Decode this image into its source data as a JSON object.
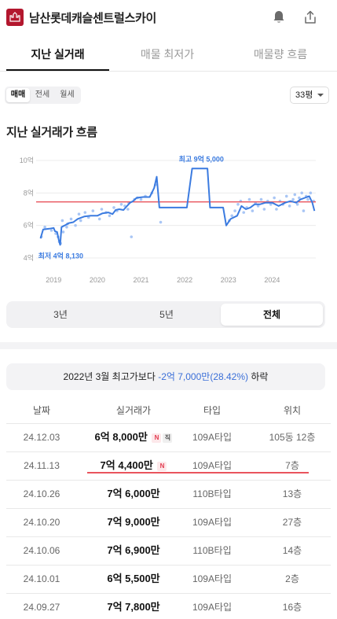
{
  "app": {
    "title": "남산롯데캐슬센트럴스카이"
  },
  "icons": {
    "logo": "castle-logo-icon",
    "bell": "bell-icon",
    "share": "share-icon"
  },
  "colors": {
    "brand": "#b3172e",
    "line": "#3b7be0",
    "scatter": "#a9c6f5",
    "average_line": "#e9545d",
    "accent": "#3b6fd8"
  },
  "tabs": [
    "지난 실거래",
    "매물 최저가",
    "매물량 흐름"
  ],
  "deal_types": [
    "매매",
    "전세",
    "월세"
  ],
  "size_select": "33평",
  "section_title": "지난 실거래가 흐름",
  "chart_data": {
    "type": "line",
    "y_tick_labels": [
      "10억",
      "8억",
      "6억",
      "4억"
    ],
    "y_ticks": [
      10,
      8,
      6,
      4
    ],
    "x_tick_labels": [
      "2019",
      "2020",
      "2021",
      "2022",
      "2023",
      "2024"
    ],
    "x_ticks": [
      2019,
      2020,
      2021,
      2022,
      2023,
      2024
    ],
    "x_range": [
      2018.6,
      2025.0
    ],
    "ylim": [
      4,
      10
    ],
    "grid": true,
    "annotations": {
      "max_label": "최고 9억 5,000",
      "min_label": "최저 4억 8,130"
    },
    "max_point": {
      "x": 2022.2,
      "y": 9.5
    },
    "min_point": {
      "x": 2019.15,
      "y": 4.81
    },
    "reference_line": 7.45,
    "series": [
      {
        "values": [
          [
            2018.7,
            5.2
          ],
          [
            2018.76,
            5.75
          ],
          [
            2018.9,
            5.8
          ],
          [
            2019.0,
            5.85
          ],
          [
            2019.03,
            5.65
          ],
          [
            2019.08,
            5.6
          ],
          [
            2019.12,
            5.1
          ],
          [
            2019.15,
            4.81
          ],
          [
            2019.18,
            5.9
          ],
          [
            2019.25,
            6.0
          ],
          [
            2019.35,
            6.15
          ],
          [
            2019.45,
            6.2
          ],
          [
            2019.55,
            6.4
          ],
          [
            2019.7,
            6.55
          ],
          [
            2019.85,
            6.6
          ],
          [
            2020.0,
            6.6
          ],
          [
            2020.12,
            6.75
          ],
          [
            2020.25,
            6.8
          ],
          [
            2020.35,
            6.7
          ],
          [
            2020.42,
            6.95
          ],
          [
            2020.5,
            7.0
          ],
          [
            2020.6,
            6.95
          ],
          [
            2020.68,
            7.2
          ],
          [
            2020.75,
            7.4
          ],
          [
            2020.82,
            7.5
          ],
          [
            2020.9,
            7.7
          ],
          [
            2021.05,
            7.75
          ],
          [
            2021.2,
            7.75
          ],
          [
            2021.3,
            8.3
          ],
          [
            2021.36,
            9.0
          ],
          [
            2021.42,
            7.1
          ],
          [
            2021.6,
            7.1
          ],
          [
            2021.8,
            7.1
          ],
          [
            2021.95,
            7.1
          ],
          [
            2022.05,
            7.1
          ],
          [
            2022.17,
            9.5
          ],
          [
            2022.3,
            9.5
          ],
          [
            2022.42,
            9.5
          ],
          [
            2022.52,
            9.5
          ],
          [
            2022.58,
            7.1
          ],
          [
            2022.75,
            7.1
          ],
          [
            2022.88,
            7.1
          ],
          [
            2022.95,
            6.0
          ],
          [
            2023.05,
            6.4
          ],
          [
            2023.2,
            6.6
          ],
          [
            2023.3,
            7.2
          ],
          [
            2023.4,
            7.0
          ],
          [
            2023.5,
            7.1
          ],
          [
            2023.6,
            7.3
          ],
          [
            2023.72,
            7.3
          ],
          [
            2023.85,
            7.4
          ],
          [
            2024.0,
            7.4
          ],
          [
            2024.15,
            7.2
          ],
          [
            2024.3,
            7.4
          ],
          [
            2024.42,
            7.5
          ],
          [
            2024.55,
            7.4
          ],
          [
            2024.65,
            7.6
          ],
          [
            2024.75,
            7.7
          ],
          [
            2024.85,
            7.8
          ],
          [
            2024.92,
            7.4
          ],
          [
            2024.97,
            6.9
          ]
        ]
      },
      {
        "type": "scatter",
        "values": [
          [
            2018.72,
            5.3
          ],
          [
            2018.8,
            5.9
          ],
          [
            2018.95,
            5.7
          ],
          [
            2019.05,
            5.5
          ],
          [
            2019.1,
            5.3
          ],
          [
            2019.13,
            5.0
          ],
          [
            2019.16,
            4.9
          ],
          [
            2019.2,
            6.3
          ],
          [
            2019.22,
            5.6
          ],
          [
            2019.3,
            5.9
          ],
          [
            2019.32,
            6.1
          ],
          [
            2019.4,
            6.4
          ],
          [
            2019.5,
            6.0
          ],
          [
            2019.58,
            6.7
          ],
          [
            2019.62,
            6.3
          ],
          [
            2019.72,
            6.8
          ],
          [
            2019.8,
            6.5
          ],
          [
            2019.9,
            6.9
          ],
          [
            2020.05,
            6.4
          ],
          [
            2020.1,
            7.0
          ],
          [
            2020.2,
            6.8
          ],
          [
            2020.28,
            6.6
          ],
          [
            2020.38,
            7.1
          ],
          [
            2020.45,
            6.9
          ],
          [
            2020.55,
            7.3
          ],
          [
            2020.63,
            7.2
          ],
          [
            2020.7,
            7.0
          ],
          [
            2020.72,
            7.4
          ],
          [
            2020.78,
            5.3
          ],
          [
            2020.85,
            7.6
          ],
          [
            2020.92,
            7.7
          ],
          [
            2021.0,
            7.6
          ],
          [
            2021.1,
            7.8
          ],
          [
            2021.25,
            8.0
          ],
          [
            2021.33,
            8.5
          ],
          [
            2021.45,
            6.2
          ],
          [
            2023.02,
            6.3
          ],
          [
            2023.08,
            6.6
          ],
          [
            2023.15,
            6.9
          ],
          [
            2023.22,
            7.3
          ],
          [
            2023.28,
            7.5
          ],
          [
            2023.35,
            6.8
          ],
          [
            2023.42,
            7.1
          ],
          [
            2023.48,
            7.6
          ],
          [
            2023.55,
            6.9
          ],
          [
            2023.62,
            7.4
          ],
          [
            2023.68,
            7.2
          ],
          [
            2023.75,
            7.6
          ],
          [
            2023.82,
            7.0
          ],
          [
            2023.9,
            7.5
          ],
          [
            2023.97,
            7.3
          ],
          [
            2024.05,
            7.7
          ],
          [
            2024.1,
            7.0
          ],
          [
            2024.18,
            7.5
          ],
          [
            2024.25,
            7.3
          ],
          [
            2024.33,
            7.8
          ],
          [
            2024.4,
            7.2
          ],
          [
            2024.48,
            7.6
          ],
          [
            2024.52,
            7.9
          ],
          [
            2024.58,
            7.3
          ],
          [
            2024.62,
            7.7
          ],
          [
            2024.68,
            8.0
          ],
          [
            2024.72,
            6.9
          ],
          [
            2024.78,
            7.8
          ],
          [
            2024.82,
            7.6
          ],
          [
            2024.88,
            8.0
          ],
          [
            2024.95,
            7.5
          ]
        ]
      }
    ]
  },
  "ranges": [
    "3년",
    "5년",
    "전체"
  ],
  "compare": {
    "prefix": "2022년 3월 최고가보다 ",
    "diff": "-2억 7,000만(28.42%)",
    "suffix": " 하락"
  },
  "table": {
    "headers": [
      "날짜",
      "실거래가",
      "타입",
      "위치"
    ],
    "rows": [
      {
        "date": "24.12.03",
        "price": "6억 8,000만",
        "badges": [
          "N",
          "직"
        ],
        "type": "109A타입",
        "floor": "105동 12층"
      },
      {
        "date": "24.11.13",
        "price": "7억 4,400만",
        "badges": [
          "N"
        ],
        "type": "109A타입",
        "floor": "7층"
      },
      {
        "date": "24.10.26",
        "price": "7억 6,000만",
        "badges": [],
        "type": "110B타입",
        "floor": "13층"
      },
      {
        "date": "24.10.20",
        "price": "7억 9,000만",
        "badges": [],
        "type": "109A타입",
        "floor": "27층"
      },
      {
        "date": "24.10.06",
        "price": "7억 6,900만",
        "badges": [],
        "type": "110B타입",
        "floor": "14층"
      },
      {
        "date": "24.10.01",
        "price": "6억 5,500만",
        "badges": [],
        "type": "109A타입",
        "floor": "2층"
      },
      {
        "date": "24.09.27",
        "price": "7억 7,800만",
        "badges": [],
        "type": "109A타입",
        "floor": "16층"
      }
    ]
  }
}
